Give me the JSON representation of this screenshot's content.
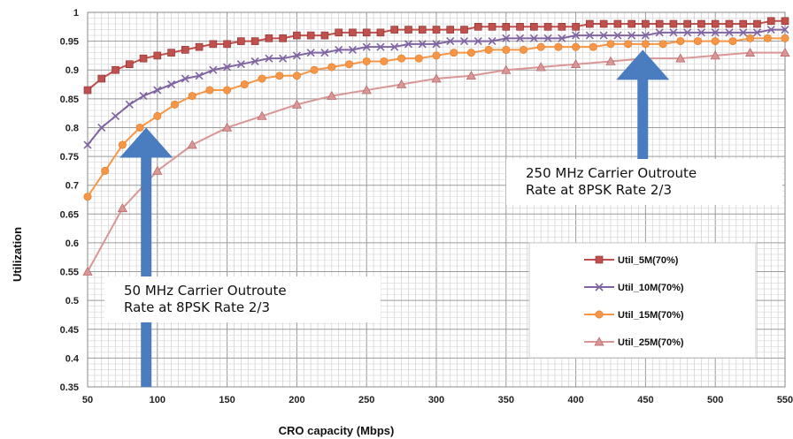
{
  "chart_data": {
    "type": "line",
    "title": "",
    "xlabel": "CRO capacity (Mbps)",
    "ylabel": "Utilization",
    "xlim": [
      50,
      550
    ],
    "ylim": [
      0.35,
      1
    ],
    "grid": true,
    "legend_position": "bottom-right",
    "x_ticks": [
      "50",
      "100",
      "150",
      "200",
      "250",
      "300",
      "350",
      "400",
      "450",
      "500",
      "550"
    ],
    "y_ticks": [
      "0.35",
      "0.4",
      "0.45",
      "0.5",
      "0.55",
      "0.6",
      "0.65",
      "0.7",
      "0.75",
      "0.8",
      "0.85",
      "0.9",
      "0.95",
      "1"
    ],
    "series": [
      {
        "name": "Util_5M(70%)",
        "color": "#c0504d",
        "marker": "square",
        "x": [
          50,
          60,
          70,
          80,
          90,
          100,
          110,
          120,
          130,
          140,
          150,
          160,
          170,
          180,
          190,
          200,
          210,
          220,
          230,
          240,
          250,
          260,
          270,
          280,
          290,
          300,
          310,
          320,
          330,
          340,
          350,
          360,
          370,
          380,
          390,
          400,
          410,
          420,
          430,
          440,
          450,
          460,
          470,
          480,
          490,
          500,
          510,
          520,
          530,
          540,
          550
        ],
        "y": [
          0.865,
          0.885,
          0.9,
          0.91,
          0.92,
          0.925,
          0.93,
          0.935,
          0.94,
          0.945,
          0.945,
          0.95,
          0.95,
          0.955,
          0.955,
          0.96,
          0.96,
          0.96,
          0.965,
          0.965,
          0.965,
          0.965,
          0.97,
          0.97,
          0.97,
          0.97,
          0.97,
          0.97,
          0.975,
          0.975,
          0.975,
          0.975,
          0.975,
          0.975,
          0.975,
          0.975,
          0.98,
          0.98,
          0.98,
          0.98,
          0.98,
          0.98,
          0.98,
          0.98,
          0.98,
          0.98,
          0.98,
          0.98,
          0.98,
          0.985,
          0.985
        ]
      },
      {
        "name": "Util_10M(70%)",
        "color": "#8064a2",
        "marker": "x",
        "x": [
          50,
          60,
          70,
          80,
          90,
          100,
          110,
          120,
          130,
          140,
          150,
          160,
          170,
          180,
          190,
          200,
          210,
          220,
          230,
          240,
          250,
          260,
          270,
          280,
          290,
          300,
          310,
          320,
          330,
          340,
          350,
          360,
          370,
          380,
          390,
          400,
          410,
          420,
          430,
          440,
          450,
          460,
          470,
          480,
          490,
          500,
          510,
          520,
          530,
          540,
          550
        ],
        "y": [
          0.77,
          0.8,
          0.82,
          0.84,
          0.855,
          0.865,
          0.875,
          0.885,
          0.89,
          0.9,
          0.905,
          0.91,
          0.915,
          0.92,
          0.92,
          0.925,
          0.93,
          0.93,
          0.935,
          0.935,
          0.94,
          0.94,
          0.94,
          0.945,
          0.945,
          0.945,
          0.95,
          0.95,
          0.95,
          0.95,
          0.955,
          0.955,
          0.955,
          0.955,
          0.955,
          0.96,
          0.96,
          0.96,
          0.96,
          0.96,
          0.96,
          0.965,
          0.965,
          0.965,
          0.965,
          0.965,
          0.965,
          0.965,
          0.965,
          0.97,
          0.97
        ]
      },
      {
        "name": "Util_15M(70%)",
        "color": "#f79646",
        "marker": "circle",
        "x": [
          50,
          62.5,
          75,
          87.5,
          100,
          112.5,
          125,
          137.5,
          150,
          162.5,
          175,
          187.5,
          200,
          212.5,
          225,
          237.5,
          250,
          262.5,
          275,
          287.5,
          300,
          312.5,
          325,
          337.5,
          350,
          362.5,
          375,
          387.5,
          400,
          412.5,
          425,
          437.5,
          450,
          462.5,
          475,
          487.5,
          500,
          512.5,
          525,
          537.5,
          550
        ],
        "y": [
          0.68,
          0.725,
          0.77,
          0.8,
          0.82,
          0.84,
          0.855,
          0.865,
          0.865,
          0.875,
          0.885,
          0.89,
          0.89,
          0.9,
          0.905,
          0.91,
          0.915,
          0.915,
          0.92,
          0.92,
          0.925,
          0.93,
          0.93,
          0.935,
          0.935,
          0.935,
          0.94,
          0.94,
          0.94,
          0.94,
          0.945,
          0.945,
          0.945,
          0.945,
          0.95,
          0.95,
          0.95,
          0.95,
          0.955,
          0.955,
          0.955
        ]
      },
      {
        "name": "Util_25M(70%)",
        "color": "#d99694",
        "marker": "triangle",
        "x": [
          50,
          75,
          100,
          125,
          150,
          175,
          200,
          225,
          250,
          275,
          300,
          325,
          350,
          375,
          400,
          425,
          450,
          475,
          500,
          525,
          550
        ],
        "y": [
          0.55,
          0.66,
          0.725,
          0.77,
          0.8,
          0.82,
          0.84,
          0.855,
          0.865,
          0.875,
          0.885,
          0.89,
          0.9,
          0.905,
          0.91,
          0.915,
          0.92,
          0.92,
          0.925,
          0.93,
          0.93
        ]
      }
    ],
    "annotations": [
      {
        "lines": [
          "50 MHz Carrier Outroute",
          "Rate at 8PSK Rate 2/3"
        ],
        "arrow_x": 92,
        "arrow_tip_y": 0.8,
        "arrow_base_y": 0.35
      },
      {
        "lines": [
          "250 MHz Carrier Outroute",
          "Rate at 8PSK Rate 2/3"
        ],
        "arrow_x": 448,
        "arrow_tip_y": 0.935,
        "arrow_base_y": 0.74
      }
    ],
    "arrow_color": "#4a7cc0"
  }
}
